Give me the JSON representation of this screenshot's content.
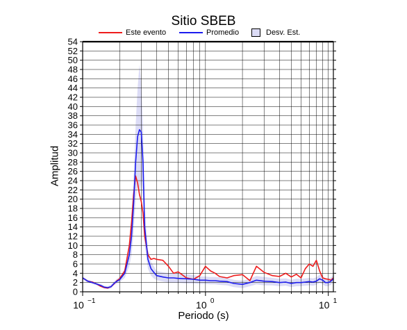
{
  "title": "Sitio SBEB",
  "legend": {
    "items": [
      {
        "label": "Este evento",
        "color": "#ee1c1c",
        "kind": "line"
      },
      {
        "label": "Promedio",
        "color": "#1c1cee",
        "kind": "line"
      },
      {
        "label": "Desv. Est.",
        "color": "#dcdcf6",
        "kind": "box"
      }
    ]
  },
  "chart_data": {
    "type": "line",
    "title": "Sitio SBEB",
    "xlabel": "Periodo (s)",
    "ylabel": "Amplitud",
    "xscale": "log",
    "xlim": [
      0.1,
      11
    ],
    "ylim": [
      0,
      54
    ],
    "xticks": [
      {
        "value": 0.1,
        "base": "10",
        "exp": "−1"
      },
      {
        "value": 1,
        "base": "10",
        "exp": "0"
      },
      {
        "value": 10,
        "base": "10",
        "exp": "1"
      }
    ],
    "yticks": [
      0,
      2,
      4,
      6,
      8,
      10,
      12,
      14,
      16,
      18,
      20,
      22,
      24,
      26,
      28,
      30,
      32,
      34,
      36,
      38,
      40,
      42,
      44,
      46,
      48,
      50,
      52,
      54
    ],
    "grid": true,
    "legend_position": "top",
    "series": [
      {
        "name": "Este evento",
        "color": "#ee1c1c",
        "x": [
          0.1,
          0.11,
          0.12,
          0.13,
          0.14,
          0.15,
          0.16,
          0.17,
          0.18,
          0.19,
          0.2,
          0.22,
          0.24,
          0.25,
          0.26,
          0.27,
          0.28,
          0.29,
          0.3,
          0.31,
          0.32,
          0.34,
          0.36,
          0.38,
          0.4,
          0.45,
          0.5,
          0.55,
          0.6,
          0.7,
          0.8,
          0.9,
          1.0,
          1.1,
          1.2,
          1.3,
          1.5,
          1.7,
          2.0,
          2.3,
          2.6,
          3.0,
          3.5,
          4.0,
          4.5,
          5.0,
          5.5,
          6.0,
          6.5,
          7.0,
          7.5,
          8.0,
          8.5,
          9.0,
          9.5,
          10.0,
          10.5,
          11.0
        ],
        "values": [
          3.0,
          2.3,
          2.1,
          1.7,
          1.2,
          0.9,
          0.8,
          1.1,
          1.7,
          2.4,
          2.8,
          4.5,
          10.0,
          15.0,
          21.0,
          25.0,
          23.5,
          21.0,
          19.5,
          17.0,
          12.0,
          8.0,
          7.0,
          7.2,
          7.0,
          6.8,
          5.5,
          4.0,
          4.3,
          3.0,
          2.7,
          3.5,
          5.5,
          4.5,
          4.0,
          3.3,
          3.0,
          3.5,
          3.7,
          2.4,
          5.5,
          4.2,
          3.5,
          3.3,
          4.0,
          3.2,
          3.8,
          3.0,
          5.0,
          6.0,
          5.5,
          6.8,
          4.5,
          3.0,
          2.8,
          2.7,
          2.5,
          3.0
        ]
      },
      {
        "name": "Promedio",
        "color": "#1c1cee",
        "x": [
          0.1,
          0.11,
          0.12,
          0.13,
          0.14,
          0.15,
          0.16,
          0.17,
          0.18,
          0.19,
          0.2,
          0.22,
          0.24,
          0.25,
          0.26,
          0.27,
          0.28,
          0.29,
          0.3,
          0.31,
          0.32,
          0.34,
          0.36,
          0.38,
          0.4,
          0.45,
          0.5,
          0.55,
          0.6,
          0.7,
          0.8,
          0.9,
          1.0,
          1.1,
          1.2,
          1.3,
          1.5,
          1.7,
          2.0,
          2.3,
          2.6,
          3.0,
          3.5,
          4.0,
          4.5,
          5.0,
          5.5,
          6.0,
          6.5,
          7.0,
          7.5,
          8.0,
          8.5,
          9.0,
          9.5,
          10.0,
          10.5,
          11.0
        ],
        "values": [
          3.0,
          2.3,
          2.0,
          1.7,
          1.4,
          1.0,
          0.9,
          1.1,
          1.8,
          2.3,
          2.6,
          4.0,
          8.0,
          12.0,
          19.0,
          28.0,
          33.5,
          35.0,
          34.5,
          28.0,
          14.0,
          7.0,
          5.0,
          4.2,
          3.5,
          3.2,
          3.0,
          3.0,
          2.9,
          2.8,
          2.7,
          2.5,
          2.5,
          2.4,
          2.4,
          2.3,
          2.2,
          1.8,
          1.6,
          2.0,
          2.5,
          2.3,
          2.2,
          2.0,
          2.1,
          1.8,
          2.0,
          2.0,
          2.1,
          2.2,
          2.1,
          2.3,
          2.8,
          2.5,
          2.0,
          2.0,
          2.3,
          2.8
        ]
      }
    ],
    "std_band": {
      "name": "Desv. Est.",
      "color": "#dcdcf6",
      "x": [
        0.1,
        0.11,
        0.12,
        0.13,
        0.14,
        0.15,
        0.16,
        0.17,
        0.18,
        0.19,
        0.2,
        0.22,
        0.24,
        0.25,
        0.26,
        0.27,
        0.28,
        0.29,
        0.3,
        0.31,
        0.32,
        0.34,
        0.36,
        0.38,
        0.4,
        0.45,
        0.5,
        0.55,
        0.6,
        0.7,
        0.8,
        0.9,
        1.0,
        1.1,
        1.2,
        1.3,
        1.5,
        1.7,
        2.0,
        2.3,
        2.6,
        3.0,
        3.5,
        4.0,
        4.5,
        5.0,
        5.5,
        6.0,
        6.5,
        7.0,
        7.5,
        8.0,
        8.5,
        9.0,
        9.5,
        10.0,
        10.5,
        11.0
      ],
      "upper": [
        3.3,
        2.6,
        2.3,
        2.0,
        1.7,
        1.3,
        1.2,
        1.5,
        2.2,
        2.8,
        3.1,
        5.0,
        10.5,
        16.0,
        25.0,
        36.0,
        44.0,
        49.0,
        45.0,
        36.0,
        18.0,
        9.0,
        6.5,
        5.5,
        4.5,
        4.2,
        4.0,
        4.0,
        3.9,
        3.8,
        3.6,
        3.3,
        3.3,
        3.2,
        3.2,
        3.1,
        3.0,
        2.6,
        2.4,
        2.8,
        3.4,
        3.2,
        3.0,
        2.8,
        2.9,
        2.6,
        2.8,
        2.8,
        2.9,
        3.0,
        2.9,
        3.1,
        3.7,
        3.4,
        2.8,
        2.8,
        3.1,
        3.6
      ],
      "lower": [
        2.7,
        2.0,
        1.7,
        1.4,
        1.1,
        0.7,
        0.6,
        0.7,
        1.4,
        1.8,
        2.1,
        3.0,
        5.5,
        8.0,
        13.0,
        20.0,
        23.0,
        21.0,
        24.0,
        20.0,
        10.0,
        5.0,
        3.5,
        2.9,
        2.5,
        2.2,
        2.0,
        2.0,
        1.9,
        1.8,
        1.8,
        1.7,
        1.7,
        1.6,
        1.6,
        1.5,
        1.4,
        1.0,
        0.8,
        1.2,
        1.6,
        1.4,
        1.4,
        1.2,
        1.3,
        1.0,
        1.2,
        1.2,
        1.3,
        1.4,
        1.3,
        1.5,
        1.9,
        1.6,
        1.2,
        1.2,
        1.5,
        2.0
      ]
    }
  }
}
